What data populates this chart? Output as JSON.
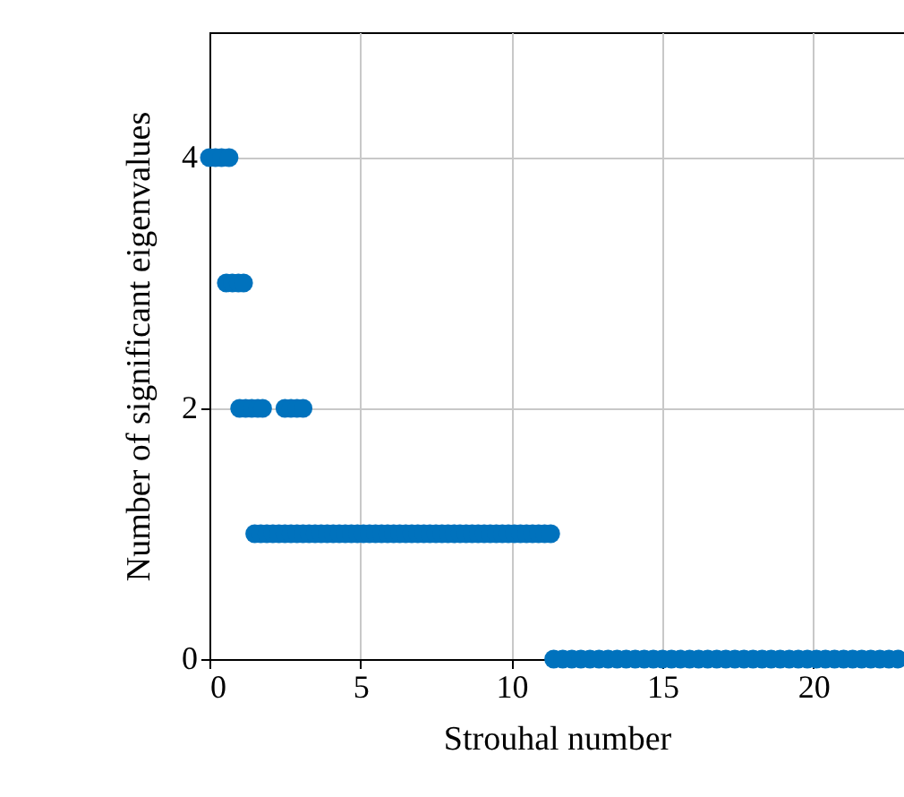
{
  "chart_data": {
    "type": "scatter",
    "xlabel": "Strouhal number",
    "ylabel": "Number of significant eigenvalues",
    "x": [
      0,
      0.2,
      0.4,
      0.65,
      0.56,
      0.76,
      0.96,
      1.13,
      1.0,
      1.2,
      1.4,
      1.6,
      1.76,
      2.5,
      2.7,
      2.9,
      3.1,
      1.5,
      1.7,
      1.9,
      2.1,
      2.3,
      2.5,
      2.7,
      2.9,
      3.1,
      3.3,
      3.5,
      3.7,
      3.9,
      4.1,
      4.3,
      4.5,
      4.7,
      4.9,
      5.1,
      5.3,
      5.5,
      5.7,
      5.9,
      6.1,
      6.3,
      6.5,
      6.7,
      6.9,
      7.1,
      7.3,
      7.5,
      7.7,
      7.9,
      8.1,
      8.3,
      8.5,
      8.7,
      8.9,
      9.1,
      9.3,
      9.5,
      9.7,
      9.9,
      10.1,
      10.3,
      10.5,
      10.7,
      10.9,
      11.1,
      11.3,
      11.4,
      11.7,
      12,
      12.3,
      12.6,
      12.9,
      13.2,
      13.5,
      13.8,
      14.1,
      14.4,
      14.7,
      15,
      15.3,
      15.6,
      15.9,
      16.2,
      16.5,
      16.8,
      17.1,
      17.4,
      17.7,
      18,
      18.3,
      18.6,
      18.9,
      19.2,
      19.5,
      19.8,
      20.1,
      20.4,
      20.7,
      21,
      21.3,
      21.6,
      21.9,
      22.2,
      22.5,
      22.8
    ],
    "series": [
      {
        "color": "#0072bd",
        "values": [
          4,
          4,
          4,
          4,
          3,
          3,
          3,
          3,
          2,
          2,
          2,
          2,
          2,
          2,
          2,
          2,
          2,
          1,
          1,
          1,
          1,
          1,
          1,
          1,
          1,
          1,
          1,
          1,
          1,
          1,
          1,
          1,
          1,
          1,
          1,
          1,
          1,
          1,
          1,
          1,
          1,
          1,
          1,
          1,
          1,
          1,
          1,
          1,
          1,
          1,
          1,
          1,
          1,
          1,
          1,
          1,
          1,
          1,
          1,
          1,
          1,
          1,
          1,
          1,
          1,
          1,
          1,
          0,
          0,
          0,
          0,
          0,
          0,
          0,
          0,
          0,
          0,
          0,
          0,
          0,
          0,
          0,
          0,
          0,
          0,
          0,
          0,
          0,
          0,
          0,
          0,
          0,
          0,
          0,
          0,
          0,
          0,
          0,
          0,
          0,
          0,
          0,
          0,
          0,
          0,
          0
        ]
      }
    ],
    "xlim": [
      0,
      23
    ],
    "ylim": [
      0,
      5
    ],
    "xticks": [
      0,
      5,
      10,
      15,
      20
    ],
    "yticks": [
      0,
      2,
      4
    ],
    "grid": true,
    "marker": "circle"
  }
}
